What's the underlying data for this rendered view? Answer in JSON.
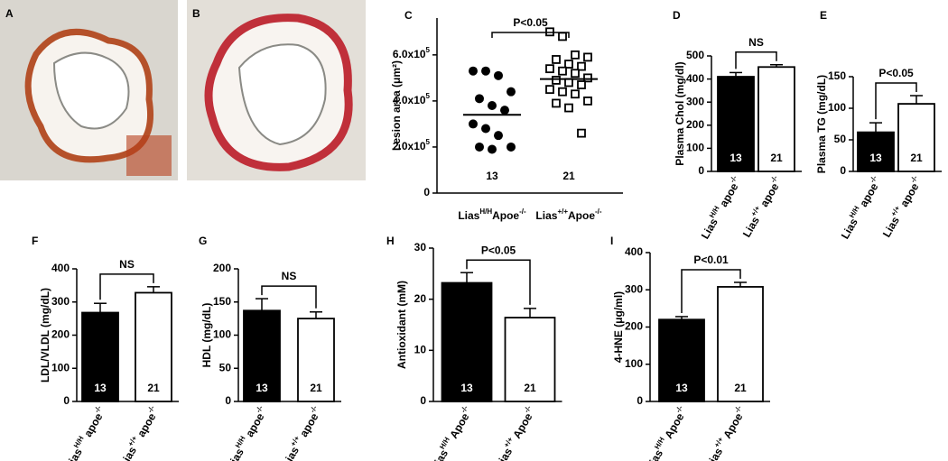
{
  "chart_data": [
    {
      "type": "image",
      "panel": "A"
    },
    {
      "type": "image",
      "panel": "B"
    },
    {
      "type": "scatter",
      "panel": "C",
      "ylabel": "Lesion area (μm²)",
      "categories": [
        [
          "Lias",
          "H/H",
          "Apoe",
          "-/-"
        ],
        [
          "Lias",
          "+/+",
          "Apoe",
          "-/-"
        ]
      ],
      "series": [
        {
          "values": [
            530000,
            530000,
            510000,
            440000,
            410000,
            380000,
            360000,
            300000,
            280000,
            250000,
            200000,
            200000,
            190000
          ],
          "marker": "filled"
        },
        {
          "values": [
            700000,
            680000,
            600000,
            590000,
            580000,
            560000,
            550000,
            540000,
            530000,
            520000,
            500000,
            490000,
            480000,
            470000,
            450000,
            440000,
            430000,
            400000,
            390000,
            370000,
            260000
          ],
          "marker": "open"
        }
      ],
      "means": [
        340000,
        495000
      ],
      "counts": [
        13,
        21
      ],
      "significance": "P<0.05",
      "ylim": [
        0,
        760000
      ],
      "yticks": [
        0,
        {
          "value": 200000,
          "label": [
            "2.0x10",
            "5"
          ]
        },
        {
          "value": 400000,
          "label": [
            "4.0x10",
            "5"
          ]
        },
        {
          "value": 600000,
          "label": [
            "6.0x10",
            "5"
          ]
        }
      ]
    },
    {
      "type": "bar",
      "panel": "D",
      "ylabel": "Plasma Chol (mg/dl)",
      "categories": [
        [
          "Lias",
          "H/H",
          " apoe",
          "-/-"
        ],
        [
          "Lias",
          "+/+",
          " apoe",
          "-/-"
        ]
      ],
      "values": [
        410,
        452
      ],
      "errors": [
        18,
        10
      ],
      "counts": [
        13,
        21
      ],
      "colors": [
        "#000000",
        "#ffffff"
      ],
      "significance": "NS",
      "ylim": [
        0,
        500
      ],
      "yticks": [
        0,
        100,
        200,
        300,
        400,
        500
      ]
    },
    {
      "type": "bar",
      "panel": "E",
      "ylabel": "Plasma TG (mg/dL)",
      "categories": [
        [
          "Lias",
          "H/H",
          " apoe",
          "-/-"
        ],
        [
          "Lias",
          "+/+",
          " apoe",
          "-/-"
        ]
      ],
      "values": [
        62,
        107
      ],
      "errors": [
        15,
        13
      ],
      "counts": [
        13,
        21
      ],
      "colors": [
        "#000000",
        "#ffffff"
      ],
      "significance": "P<0.05",
      "ylim": [
        0,
        150
      ],
      "yticks": [
        0,
        50,
        100,
        150
      ]
    },
    {
      "type": "bar",
      "panel": "F",
      "ylabel": "LDL/VLDL (mg/dL)",
      "categories": [
        [
          "Lias",
          "H/H",
          " apoe",
          "-/-"
        ],
        [
          "Lias",
          "+/+",
          " apoe",
          "-/-"
        ]
      ],
      "values": [
        268,
        328
      ],
      "errors": [
        28,
        18
      ],
      "counts": [
        13,
        21
      ],
      "colors": [
        "#000000",
        "#ffffff"
      ],
      "significance": "NS",
      "ylim": [
        0,
        400
      ],
      "yticks": [
        0,
        100,
        200,
        300,
        400
      ]
    },
    {
      "type": "bar",
      "panel": "G",
      "ylabel": "HDL (mg/dL)",
      "categories": [
        [
          "Lias",
          "H/H",
          " apoe",
          "-/-"
        ],
        [
          "Lias",
          "+/+",
          " apoe",
          "-/-"
        ]
      ],
      "values": [
        137,
        125
      ],
      "errors": [
        18,
        10
      ],
      "counts": [
        13,
        21
      ],
      "colors": [
        "#000000",
        "#ffffff"
      ],
      "significance": "NS",
      "ylim": [
        0,
        200
      ],
      "yticks": [
        0,
        50,
        100,
        150,
        200
      ]
    },
    {
      "type": "bar",
      "panel": "H",
      "ylabel": "Antioxidant (mM)",
      "categories": [
        [
          "Lias",
          "H/H",
          " Apoe",
          "-/-"
        ],
        [
          "Lias",
          "+/+",
          " Apoe",
          "-/-"
        ]
      ],
      "values": [
        23.2,
        16.4
      ],
      "errors": [
        2,
        1.8
      ],
      "counts": [
        13,
        21
      ],
      "colors": [
        "#000000",
        "#ffffff"
      ],
      "significance": "P<0.05",
      "ylim": [
        0,
        30
      ],
      "yticks": [
        0,
        10,
        20,
        30
      ]
    },
    {
      "type": "bar",
      "panel": "I",
      "ylabel": "4-HNE (μg/ml)",
      "categories": [
        [
          "Lias",
          "H/H",
          " Apoe",
          "-/-"
        ],
        [
          "Lias",
          "+/+",
          " Apoe",
          "-/-"
        ]
      ],
      "values": [
        220,
        308
      ],
      "errors": [
        8,
        12
      ],
      "counts": [
        13,
        21
      ],
      "colors": [
        "#000000",
        "#ffffff"
      ],
      "significance": "P<0.01",
      "ylim": [
        0,
        400
      ],
      "yticks": [
        0,
        100,
        200,
        300,
        400
      ]
    }
  ]
}
